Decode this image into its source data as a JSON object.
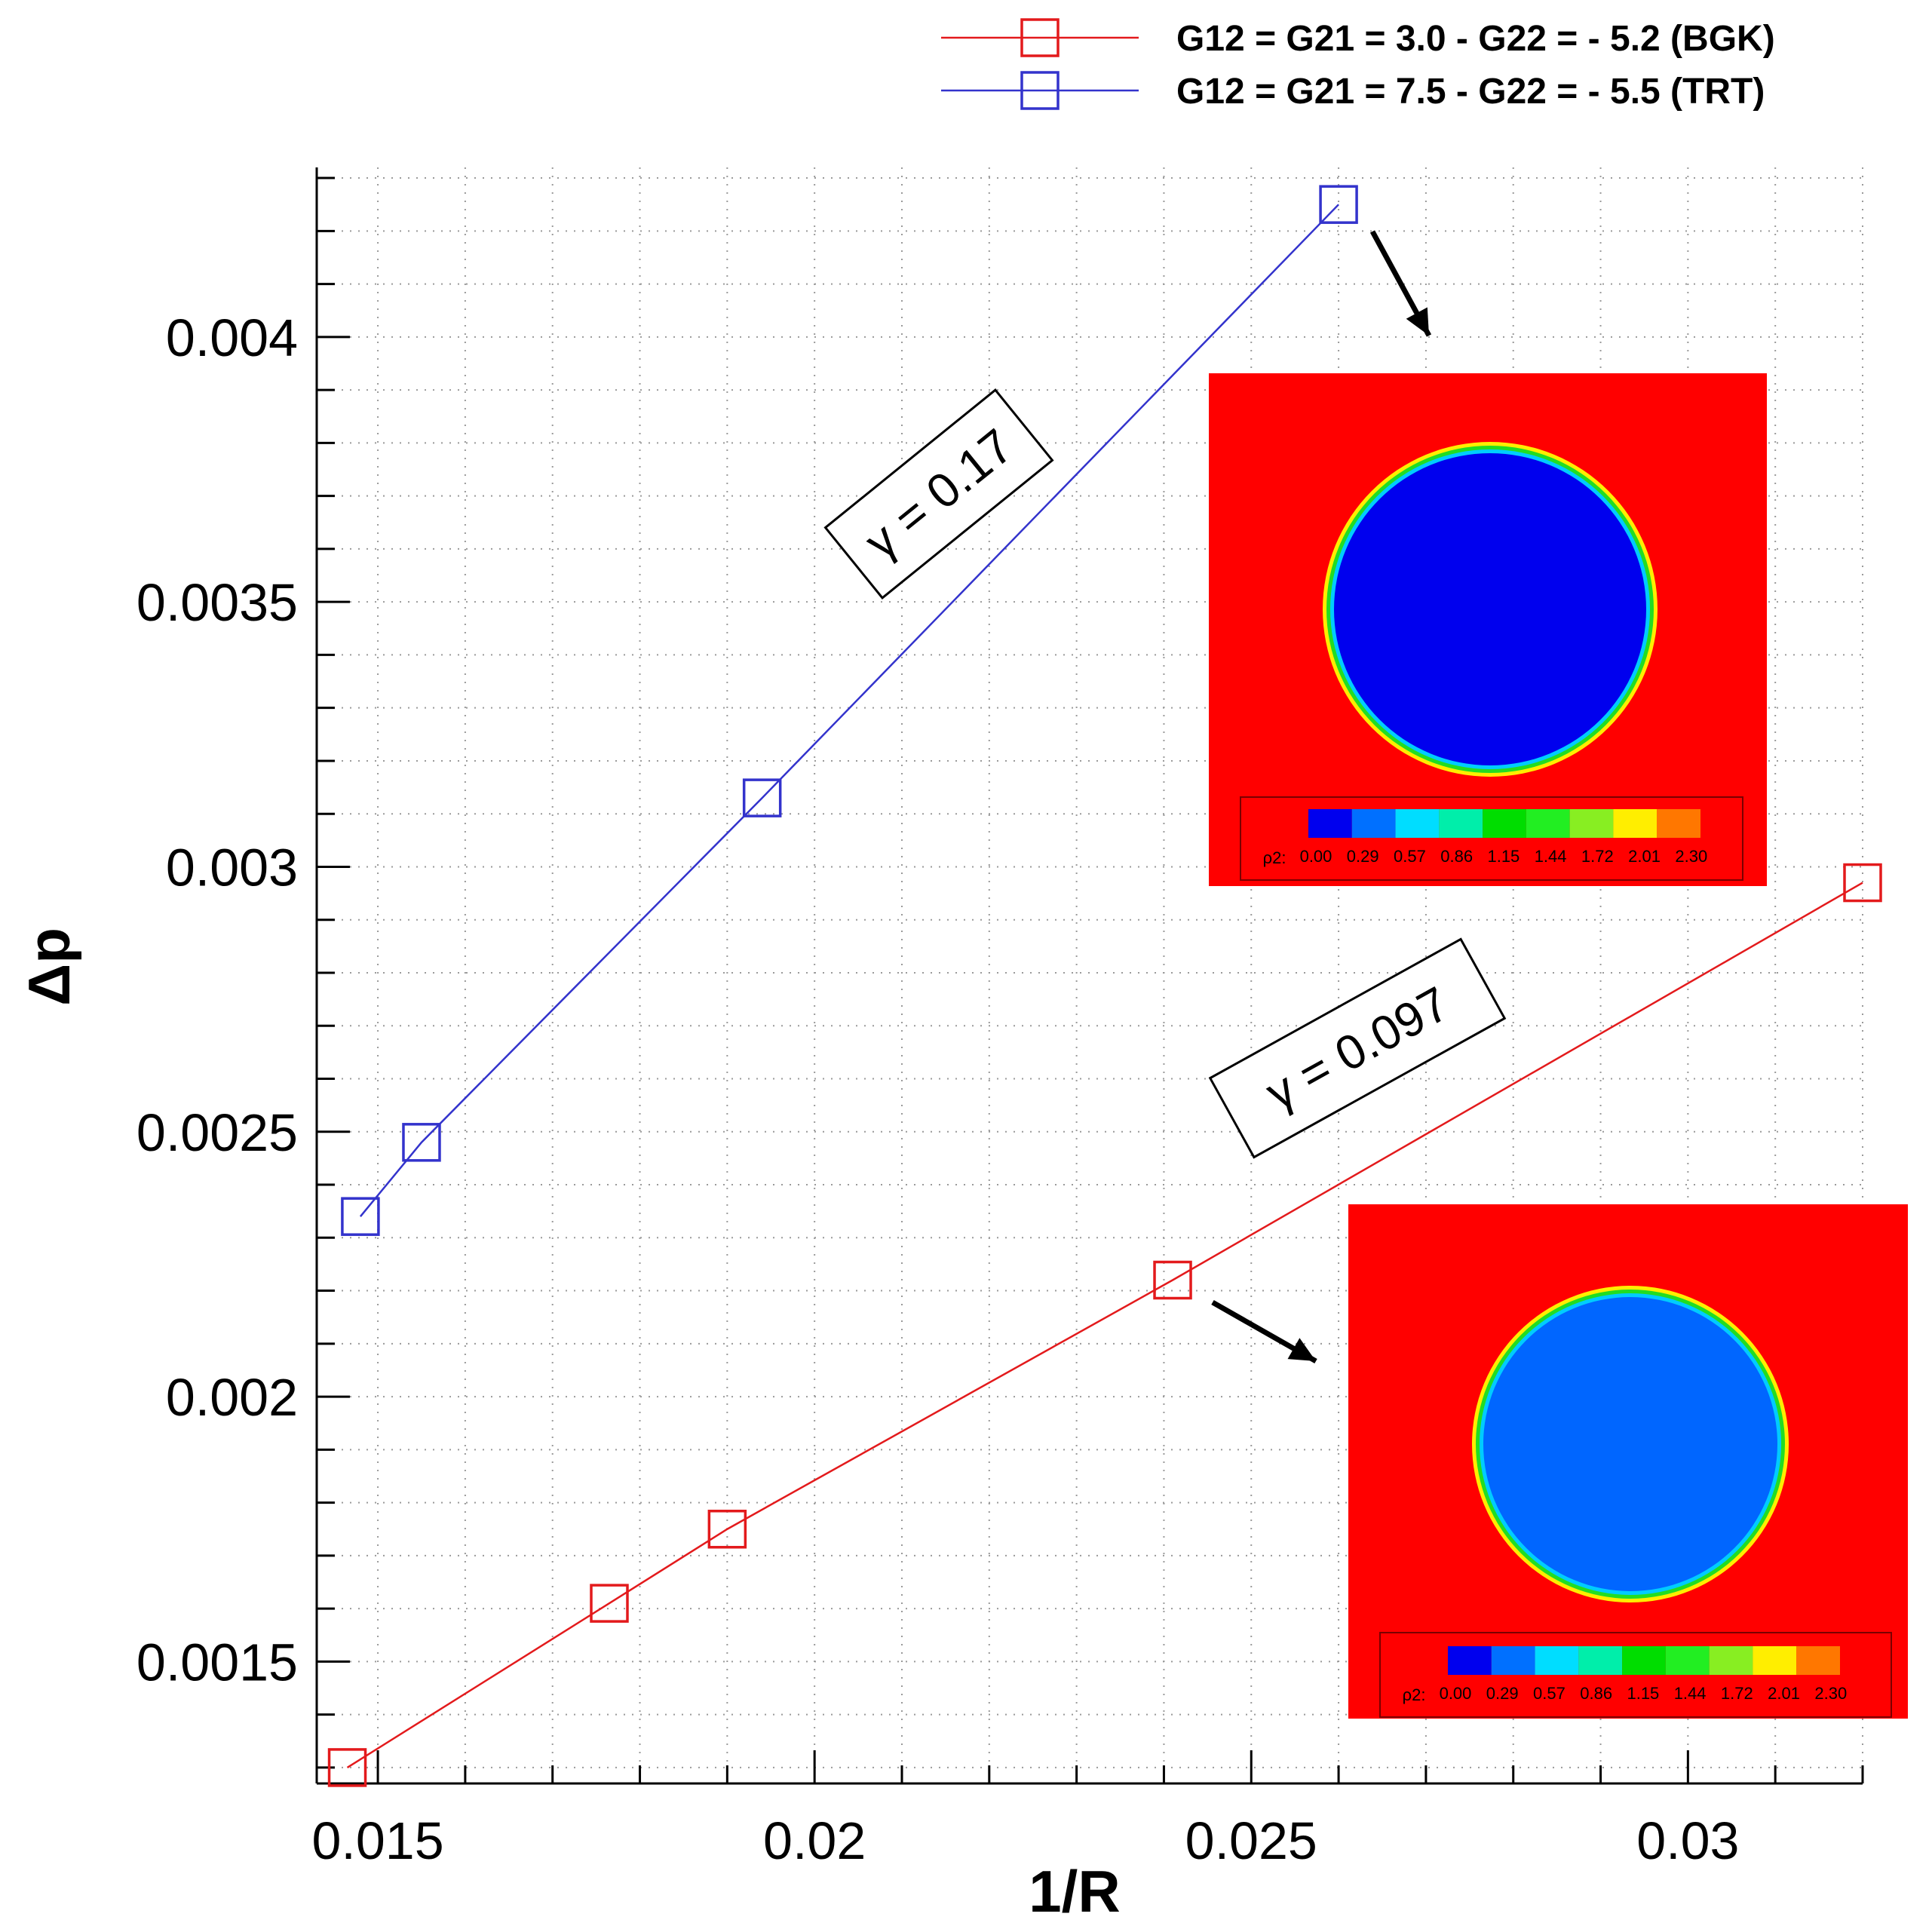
{
  "chart_data": {
    "type": "line",
    "xlabel": "1/R",
    "ylabel": "Δp",
    "xlim": [
      0.0143,
      0.032
    ],
    "ylim": [
      0.00127,
      0.00432
    ],
    "x_ticks": [
      "0.015",
      "0.02",
      "0.025",
      "0.03"
    ],
    "y_ticks": [
      "0.0015",
      "0.002",
      "0.0025",
      "0.003",
      "0.0035",
      "0.004"
    ],
    "grid": true,
    "legend_position": "top-right",
    "series": [
      {
        "name": "G12 = G21 = 3.0 - G22 = - 5.2 (BGK)",
        "color": "#e31a1c",
        "marker": "open-square",
        "x": [
          0.01465,
          0.01765,
          0.019,
          0.0241,
          0.032
        ],
        "y": [
          0.0013,
          0.00161,
          0.00175,
          0.00222,
          0.00297
        ]
      },
      {
        "name": "G12 = G21 = 7.5 - G22 = - 5.5 (TRT)",
        "color": "#3333cc",
        "marker": "open-square",
        "x": [
          0.0148,
          0.0155,
          0.0194,
          0.026
        ],
        "y": [
          0.00234,
          0.00248,
          0.00313,
          0.00425
        ]
      }
    ],
    "annotations": [
      {
        "text": "γ = 0.17",
        "series": 1
      },
      {
        "text": "γ = 0.097",
        "series": 0
      }
    ],
    "insets": [
      {
        "name": "TRT density field",
        "points_to": {
          "series": 1,
          "x": 0.026,
          "y": 0.00425
        },
        "colorbar_title": "ρ2:",
        "colorbar_values": [
          "0.00",
          "0.29",
          "0.57",
          "0.86",
          "1.15",
          "1.44",
          "1.72",
          "2.01",
          "2.30"
        ],
        "colorbar_colors": [
          "#0000ee",
          "#0070ff",
          "#00ddff",
          "#00eeaa",
          "#00dd00",
          "#22ee22",
          "#88ee22",
          "#ffee00",
          "#ff7700"
        ],
        "background_color": "#ff0000",
        "drop_color": "#0000ee"
      },
      {
        "name": "BGK density field",
        "points_to": {
          "series": 0,
          "x": 0.0241,
          "y": 0.00222
        },
        "colorbar_title": "ρ2:",
        "colorbar_values": [
          "0.00",
          "0.29",
          "0.57",
          "0.86",
          "1.15",
          "1.44",
          "1.72",
          "2.01",
          "2.30"
        ],
        "colorbar_colors": [
          "#0000ee",
          "#0070ff",
          "#00ddff",
          "#00eeaa",
          "#00dd00",
          "#22ee22",
          "#88ee22",
          "#ffee00",
          "#ff7700"
        ],
        "background_color": "#ff0000",
        "drop_color": "#0066ff"
      }
    ]
  }
}
